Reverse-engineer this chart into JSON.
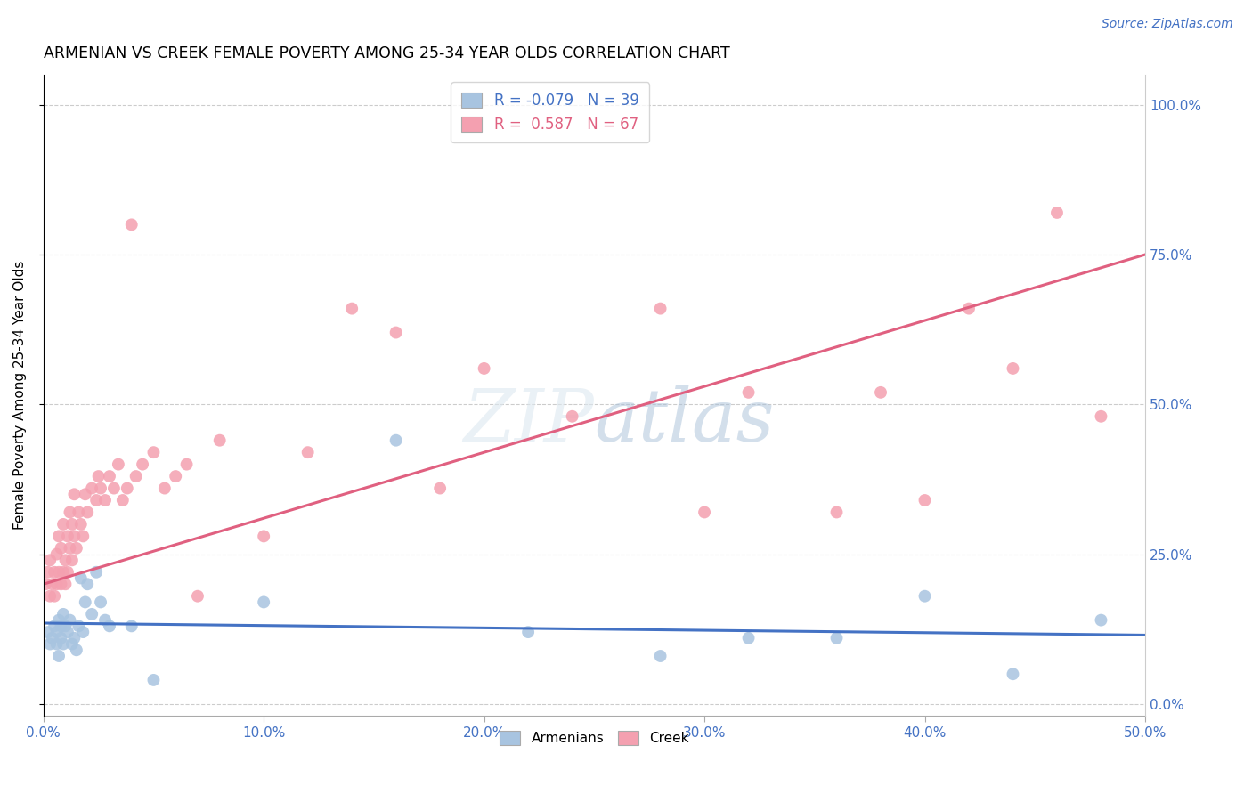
{
  "title": "ARMENIAN VS CREEK FEMALE POVERTY AMONG 25-34 YEAR OLDS CORRELATION CHART",
  "source": "Source: ZipAtlas.com",
  "ylabel": "Female Poverty Among 25-34 Year Olds",
  "xlim": [
    0.0,
    0.5
  ],
  "ylim": [
    -0.02,
    1.05
  ],
  "xtick_vals": [
    0.0,
    0.1,
    0.2,
    0.3,
    0.4,
    0.5
  ],
  "xtick_labels": [
    "0.0%",
    "10.0%",
    "20.0%",
    "30.0%",
    "40.0%",
    "50.0%"
  ],
  "ytick_vals": [
    0.0,
    0.25,
    0.5,
    0.75,
    1.0
  ],
  "ytick_labels": [
    "0.0%",
    "25.0%",
    "50.0%",
    "75.0%",
    "100.0%"
  ],
  "armenian_color": "#a8c4e0",
  "creek_color": "#f4a0b0",
  "armenian_line_color": "#4472c4",
  "creek_line_color": "#e06080",
  "R_armenian": -0.079,
  "N_armenian": 39,
  "R_creek": 0.587,
  "N_creek": 67,
  "armenian_scatter_x": [
    0.002,
    0.003,
    0.004,
    0.005,
    0.006,
    0.006,
    0.007,
    0.007,
    0.008,
    0.008,
    0.009,
    0.009,
    0.01,
    0.011,
    0.012,
    0.013,
    0.014,
    0.015,
    0.016,
    0.017,
    0.018,
    0.019,
    0.02,
    0.022,
    0.024,
    0.026,
    0.028,
    0.03,
    0.04,
    0.05,
    0.1,
    0.16,
    0.22,
    0.28,
    0.32,
    0.36,
    0.4,
    0.44,
    0.48
  ],
  "armenian_scatter_y": [
    0.12,
    0.1,
    0.11,
    0.13,
    0.1,
    0.12,
    0.14,
    0.08,
    0.11,
    0.13,
    0.1,
    0.15,
    0.13,
    0.12,
    0.14,
    0.1,
    0.11,
    0.09,
    0.13,
    0.21,
    0.12,
    0.17,
    0.2,
    0.15,
    0.22,
    0.17,
    0.14,
    0.13,
    0.13,
    0.04,
    0.17,
    0.44,
    0.12,
    0.08,
    0.11,
    0.11,
    0.18,
    0.05,
    0.14
  ],
  "creek_scatter_x": [
    0.001,
    0.002,
    0.003,
    0.003,
    0.004,
    0.005,
    0.005,
    0.006,
    0.006,
    0.007,
    0.007,
    0.008,
    0.008,
    0.009,
    0.009,
    0.01,
    0.01,
    0.011,
    0.011,
    0.012,
    0.012,
    0.013,
    0.013,
    0.014,
    0.014,
    0.015,
    0.016,
    0.017,
    0.018,
    0.019,
    0.02,
    0.022,
    0.024,
    0.025,
    0.026,
    0.028,
    0.03,
    0.032,
    0.034,
    0.036,
    0.038,
    0.04,
    0.042,
    0.045,
    0.05,
    0.055,
    0.06,
    0.065,
    0.07,
    0.08,
    0.1,
    0.12,
    0.14,
    0.16,
    0.18,
    0.2,
    0.24,
    0.28,
    0.3,
    0.32,
    0.36,
    0.38,
    0.4,
    0.42,
    0.44,
    0.46,
    0.48
  ],
  "creek_scatter_y": [
    0.2,
    0.22,
    0.18,
    0.24,
    0.2,
    0.22,
    0.18,
    0.25,
    0.2,
    0.22,
    0.28,
    0.2,
    0.26,
    0.22,
    0.3,
    0.2,
    0.24,
    0.22,
    0.28,
    0.26,
    0.32,
    0.24,
    0.3,
    0.28,
    0.35,
    0.26,
    0.32,
    0.3,
    0.28,
    0.35,
    0.32,
    0.36,
    0.34,
    0.38,
    0.36,
    0.34,
    0.38,
    0.36,
    0.4,
    0.34,
    0.36,
    0.8,
    0.38,
    0.4,
    0.42,
    0.36,
    0.38,
    0.4,
    0.18,
    0.44,
    0.28,
    0.42,
    0.66,
    0.62,
    0.36,
    0.56,
    0.48,
    0.66,
    0.32,
    0.52,
    0.32,
    0.52,
    0.34,
    0.66,
    0.56,
    0.82,
    0.48
  ],
  "creek_line_x0": 0.0,
  "creek_line_y0": 0.2,
  "creek_line_x1": 0.5,
  "creek_line_y1": 0.75,
  "arm_line_x0": 0.0,
  "arm_line_y0": 0.135,
  "arm_line_x1": 0.5,
  "arm_line_y1": 0.115
}
